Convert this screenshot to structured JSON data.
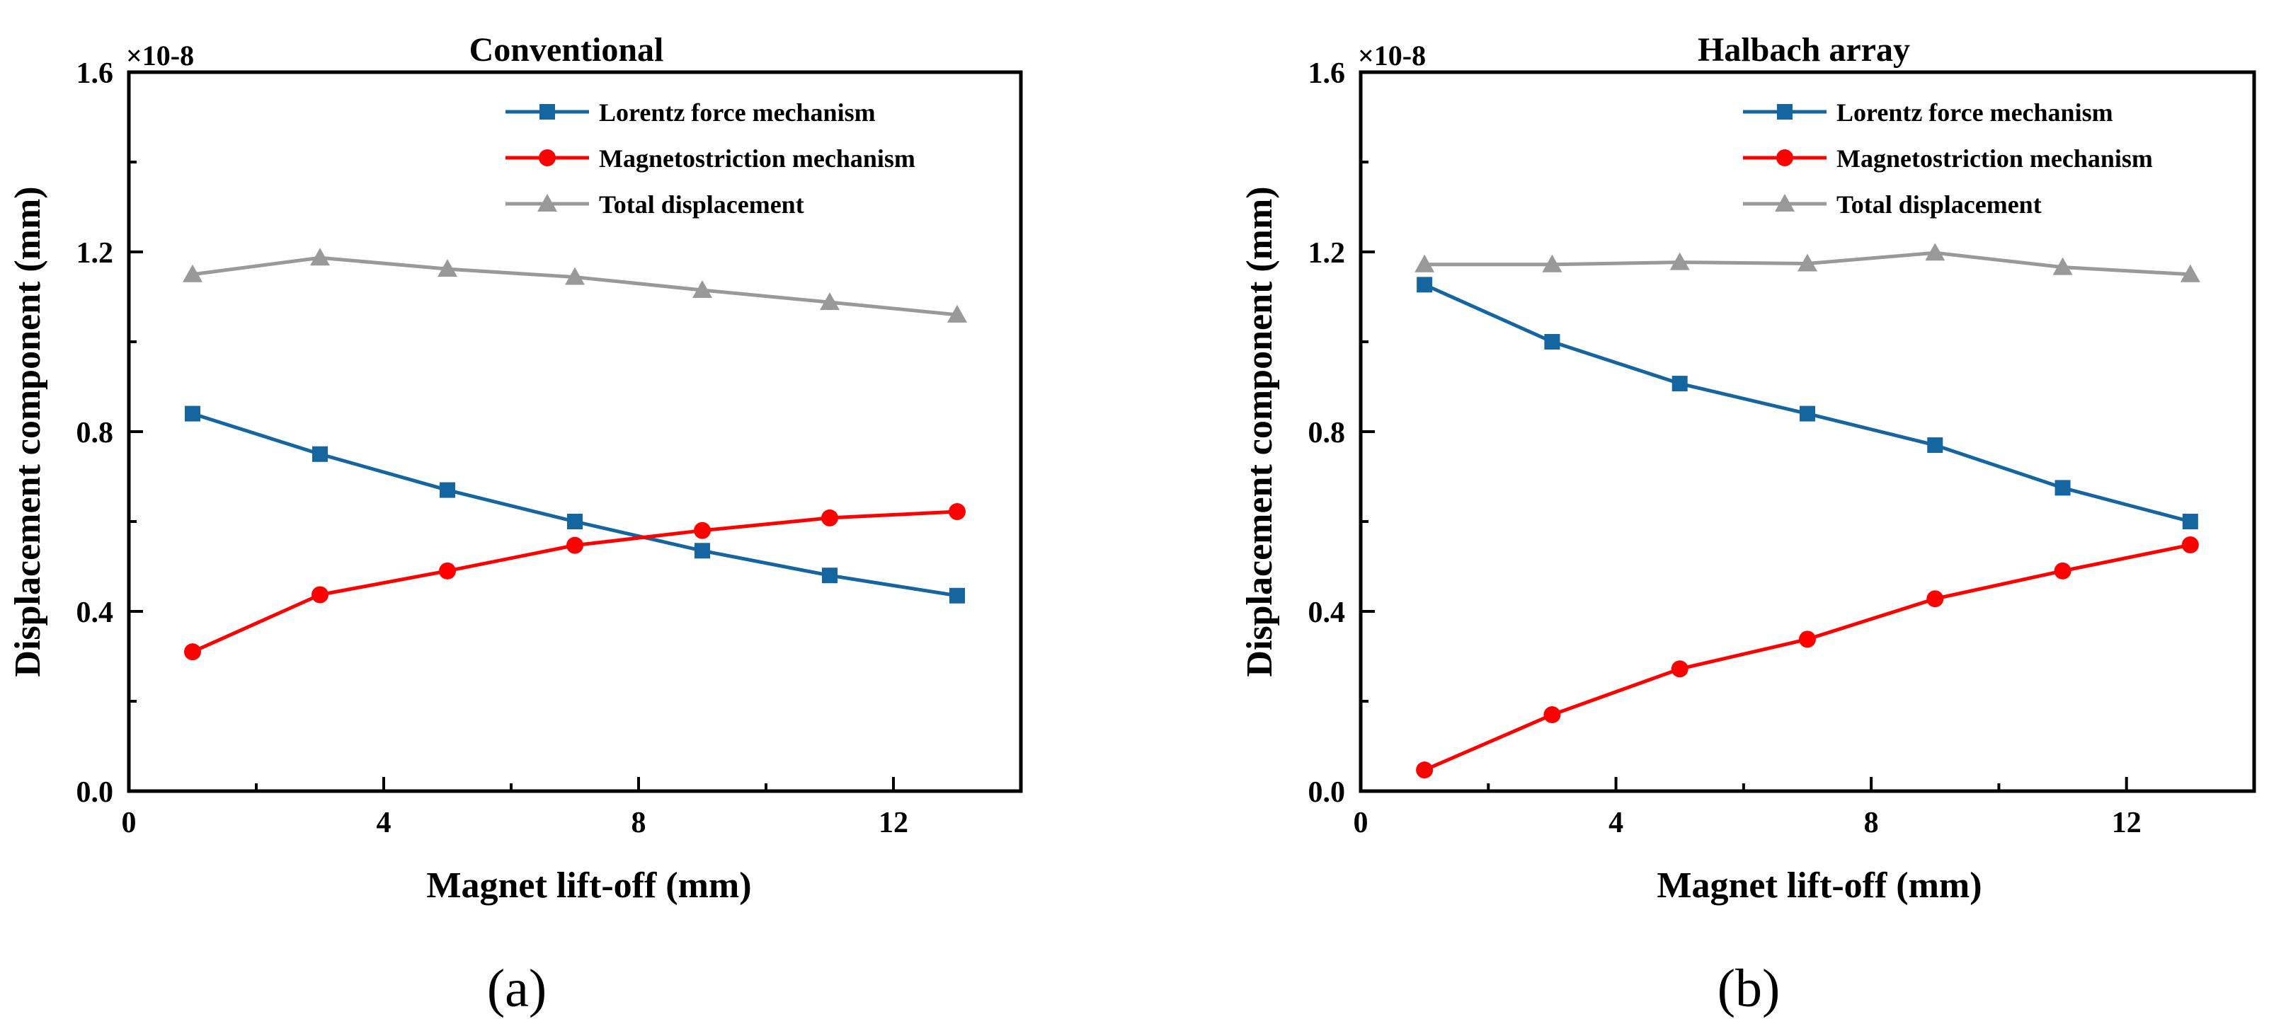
{
  "colors": {
    "lorentz": "#1465A0",
    "magnetostriction": "#FF0000",
    "total": "#999999",
    "axis": "#000000"
  },
  "chart_data": [
    {
      "type": "line",
      "title": "Conventional",
      "panel_label": "(a)",
      "xlabel": "Magnet lift-off (mm)",
      "ylabel": "Displacement component (mm)",
      "y_multiplier": "×10-8",
      "xlim": [
        0,
        14
      ],
      "ylim": [
        0,
        1.6
      ],
      "xticks": [
        0,
        4,
        8,
        12
      ],
      "xtick_labels": [
        "0",
        "4",
        "8",
        "12"
      ],
      "yticks": [
        0,
        0.4,
        0.8,
        1.2,
        1.6
      ],
      "ytick_labels": [
        "0.0",
        "0.4",
        "0.8",
        "1.2",
        "1.6"
      ],
      "legend_position": "top-right",
      "x": [
        1,
        3,
        5,
        7,
        9,
        11,
        13
      ],
      "series": [
        {
          "name": "Lorentz force mechanism",
          "marker": "square",
          "color_key": "lorentz",
          "values": [
            0.84,
            0.75,
            0.67,
            0.6,
            0.535,
            0.48,
            0.435
          ]
        },
        {
          "name": "Magnetostriction mechanism",
          "marker": "circle",
          "color_key": "magnetostriction",
          "values": [
            0.31,
            0.437,
            0.49,
            0.547,
            0.58,
            0.608,
            0.622
          ]
        },
        {
          "name": "Total displacement",
          "marker": "triangle",
          "color_key": "total",
          "values": [
            1.15,
            1.187,
            1.162,
            1.144,
            1.115,
            1.088,
            1.06
          ]
        }
      ]
    },
    {
      "type": "line",
      "title": "Halbach array",
      "panel_label": "(b)",
      "xlabel": "Magnet lift-off (mm)",
      "ylabel": "Displacement component (mm)",
      "y_multiplier": "×10-8",
      "xlim": [
        0,
        14
      ],
      "ylim": [
        0,
        1.6
      ],
      "xticks": [
        0,
        4,
        8,
        12
      ],
      "xtick_labels": [
        "0",
        "4",
        "8",
        "12"
      ],
      "yticks": [
        0,
        0.4,
        0.8,
        1.2,
        1.6
      ],
      "ytick_labels": [
        "0.0",
        "0.4",
        "0.8",
        "1.2",
        "1.6"
      ],
      "legend_position": "top-right",
      "x": [
        1,
        3,
        5,
        7,
        9,
        11,
        13
      ],
      "series": [
        {
          "name": "Lorentz force mechanism",
          "marker": "square",
          "color_key": "lorentz",
          "values": [
            1.127,
            1.0,
            0.907,
            0.84,
            0.77,
            0.675,
            0.6
          ]
        },
        {
          "name": "Magnetostriction mechanism",
          "marker": "circle",
          "color_key": "magnetostriction",
          "values": [
            0.047,
            0.17,
            0.272,
            0.338,
            0.428,
            0.49,
            0.548
          ]
        },
        {
          "name": "Total displacement",
          "marker": "triangle",
          "color_key": "total",
          "values": [
            1.172,
            1.172,
            1.177,
            1.174,
            1.198,
            1.166,
            1.15
          ]
        }
      ]
    }
  ]
}
